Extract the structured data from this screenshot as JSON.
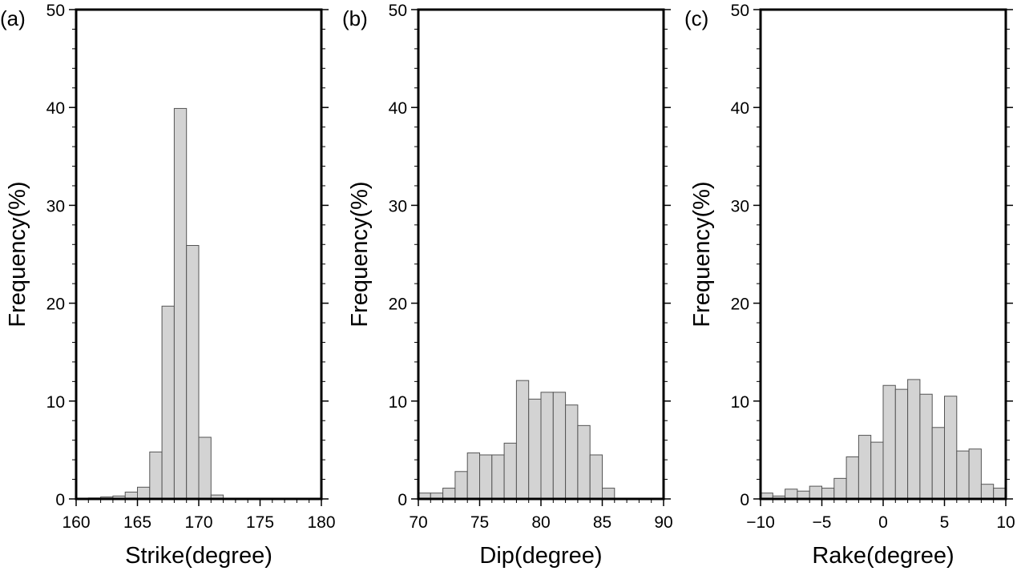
{
  "chart_data": [
    {
      "type": "bar",
      "panel_label": "(a)",
      "xlabel": "Strike(degree)",
      "ylabel": "Frequency(%)",
      "xlim": [
        160,
        180
      ],
      "ylim": [
        0,
        50
      ],
      "xticks": [
        "160",
        "165",
        "170",
        "175",
        "180"
      ],
      "yticks": [
        "0",
        "10",
        "20",
        "30",
        "40",
        "50"
      ],
      "bin_width": 1,
      "bins": [
        {
          "x0": 161,
          "value": 0.1
        },
        {
          "x0": 162,
          "value": 0.2
        },
        {
          "x0": 163,
          "value": 0.3
        },
        {
          "x0": 164,
          "value": 0.7
        },
        {
          "x0": 165,
          "value": 1.2
        },
        {
          "x0": 166,
          "value": 4.8
        },
        {
          "x0": 167,
          "value": 19.7
        },
        {
          "x0": 168,
          "value": 39.9
        },
        {
          "x0": 169,
          "value": 25.9
        },
        {
          "x0": 170,
          "value": 6.3
        },
        {
          "x0": 171,
          "value": 0.4
        }
      ]
    },
    {
      "type": "bar",
      "panel_label": "(b)",
      "xlabel": "Dip(degree)",
      "ylabel": "Frequency(%)",
      "xlim": [
        70,
        90
      ],
      "ylim": [
        0,
        50
      ],
      "xticks": [
        "70",
        "75",
        "80",
        "85",
        "90"
      ],
      "yticks": [
        "0",
        "10",
        "20",
        "30",
        "40",
        "50"
      ],
      "bin_width": 1,
      "bins": [
        {
          "x0": 70,
          "value": 0.6
        },
        {
          "x0": 71,
          "value": 0.6
        },
        {
          "x0": 72,
          "value": 1.1
        },
        {
          "x0": 73,
          "value": 2.8
        },
        {
          "x0": 74,
          "value": 4.7
        },
        {
          "x0": 75,
          "value": 4.5
        },
        {
          "x0": 76,
          "value": 4.5
        },
        {
          "x0": 77,
          "value": 5.7
        },
        {
          "x0": 78,
          "value": 12.1
        },
        {
          "x0": 79,
          "value": 10.2
        },
        {
          "x0": 80,
          "value": 10.9
        },
        {
          "x0": 81,
          "value": 10.9
        },
        {
          "x0": 82,
          "value": 9.6
        },
        {
          "x0": 83,
          "value": 7.5
        },
        {
          "x0": 84,
          "value": 4.5
        },
        {
          "x0": 85,
          "value": 1.1
        }
      ]
    },
    {
      "type": "bar",
      "panel_label": "(c)",
      "xlabel": "Rake(degree)",
      "ylabel": "Frequency(%)",
      "xlim": [
        -10,
        10
      ],
      "ylim": [
        0,
        50
      ],
      "xticks": [
        "−10",
        "−5",
        "0",
        "5",
        "10"
      ],
      "yticks": [
        "0",
        "10",
        "20",
        "30",
        "40",
        "50"
      ],
      "bin_width": 1,
      "bins": [
        {
          "x0": -10,
          "value": 0.6
        },
        {
          "x0": -9,
          "value": 0.3
        },
        {
          "x0": -8,
          "value": 1.0
        },
        {
          "x0": -7,
          "value": 0.8
        },
        {
          "x0": -6,
          "value": 1.3
        },
        {
          "x0": -5,
          "value": 1.1
        },
        {
          "x0": -4,
          "value": 2.1
        },
        {
          "x0": -3,
          "value": 4.3
        },
        {
          "x0": -2,
          "value": 6.5
        },
        {
          "x0": -1,
          "value": 5.8
        },
        {
          "x0": 0,
          "value": 11.6
        },
        {
          "x0": 1,
          "value": 11.2
        },
        {
          "x0": 2,
          "value": 12.2
        },
        {
          "x0": 3,
          "value": 10.7
        },
        {
          "x0": 4,
          "value": 7.3
        },
        {
          "x0": 5,
          "value": 10.5
        },
        {
          "x0": 6,
          "value": 4.9
        },
        {
          "x0": 7,
          "value": 5.1
        },
        {
          "x0": 8,
          "value": 1.5
        },
        {
          "x0": 9,
          "value": 1.1
        }
      ]
    }
  ],
  "style": {
    "bar_fill": "#d3d3d3",
    "bar_stroke": "#555555",
    "frame_color": "#000000"
  }
}
